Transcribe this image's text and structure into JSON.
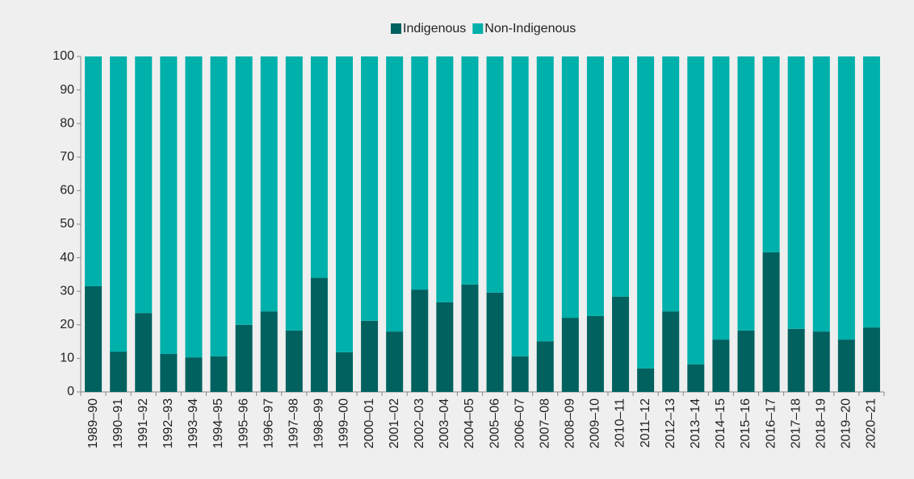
{
  "chart_data": {
    "type": "stacked_bar",
    "categories": [
      "1989–90",
      "1990–91",
      "1991–92",
      "1992–93",
      "1993–94",
      "1994–95",
      "1995–96",
      "1996–97",
      "1997–98",
      "1998–99",
      "1999–00",
      "2000–01",
      "2001–02",
      "2002–03",
      "2003–04",
      "2004–05",
      "2005–06",
      "2006–07",
      "2007–08",
      "2008–09",
      "2009–10",
      "2010–11",
      "2011–12",
      "2012–13",
      "2013–14",
      "2014–15",
      "2015–16",
      "2016–17",
      "2017–18",
      "2018–19",
      "2019–20",
      "2020–21"
    ],
    "series": [
      {
        "name": "Indigenous",
        "color": "#00615f",
        "values": [
          31.5,
          12,
          23.5,
          11.3,
          10.3,
          10.6,
          20,
          24,
          18.3,
          34,
          11.8,
          21.2,
          18,
          30.5,
          26.7,
          32,
          29.6,
          10.6,
          15.1,
          22.1,
          22.6,
          28.4,
          7,
          24,
          8.2,
          15.6,
          18.3,
          41.6,
          18.8,
          18,
          15.6,
          19.2
        ]
      },
      {
        "name": "Non-Indigenous",
        "color": "#00b0ab",
        "values": [
          68.5,
          88,
          76.5,
          88.7,
          89.7,
          89.4,
          80,
          76,
          81.7,
          66,
          88.2,
          78.8,
          82,
          69.5,
          73.3,
          68,
          70.4,
          89.4,
          84.9,
          77.9,
          77.4,
          71.6,
          93,
          76,
          91.8,
          84.4,
          81.7,
          58.4,
          81.2,
          82,
          84.4,
          80.8
        ]
      }
    ],
    "ylim": [
      0,
      100
    ],
    "yticks": [
      0,
      10,
      20,
      30,
      40,
      50,
      60,
      70,
      80,
      90,
      100
    ],
    "legend": "top"
  }
}
